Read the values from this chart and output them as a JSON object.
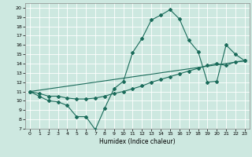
{
  "title": "",
  "xlabel": "Humidex (Indice chaleur)",
  "ylabel": "",
  "bg_color": "#cde8e0",
  "line_color": "#1a6b5a",
  "xlim": [
    -0.5,
    23.5
  ],
  "ylim": [
    7,
    20.5
  ],
  "yticks": [
    7,
    8,
    9,
    10,
    11,
    12,
    13,
    14,
    15,
    16,
    17,
    18,
    19,
    20
  ],
  "xticks": [
    0,
    1,
    2,
    3,
    4,
    5,
    6,
    7,
    8,
    9,
    10,
    11,
    12,
    13,
    14,
    15,
    16,
    17,
    18,
    19,
    20,
    21,
    22,
    23
  ],
  "series1_x": [
    0,
    1,
    2,
    3,
    4,
    5,
    6,
    7,
    8,
    9,
    10,
    11,
    12,
    13,
    14,
    15,
    16,
    17,
    18,
    19,
    20,
    21,
    22,
    23
  ],
  "series1_y": [
    11.0,
    10.5,
    10.0,
    9.9,
    9.5,
    8.3,
    8.3,
    6.9,
    9.2,
    11.3,
    12.1,
    15.2,
    16.7,
    18.7,
    19.2,
    19.8,
    18.8,
    16.5,
    15.3,
    12.0,
    12.1,
    16.0,
    15.0,
    14.3
  ],
  "series2_x": [
    0,
    1,
    2,
    3,
    4,
    5,
    6,
    7,
    8,
    9,
    10,
    11,
    12,
    13,
    14,
    15,
    16,
    17,
    18,
    19,
    20,
    21,
    22,
    23
  ],
  "series2_y": [
    11.0,
    10.8,
    10.5,
    10.5,
    10.3,
    10.2,
    10.2,
    10.3,
    10.5,
    10.8,
    11.0,
    11.3,
    11.6,
    12.0,
    12.3,
    12.6,
    12.9,
    13.2,
    13.5,
    13.8,
    14.0,
    13.8,
    14.2,
    14.3
  ],
  "series3_x": [
    0,
    23
  ],
  "series3_y": [
    11.0,
    14.3
  ],
  "markersize": 2.0,
  "linewidth": 0.8,
  "grid_color": "#b0d4cc",
  "xlabel_fontsize": 5.5,
  "tick_fontsize": 4.5
}
